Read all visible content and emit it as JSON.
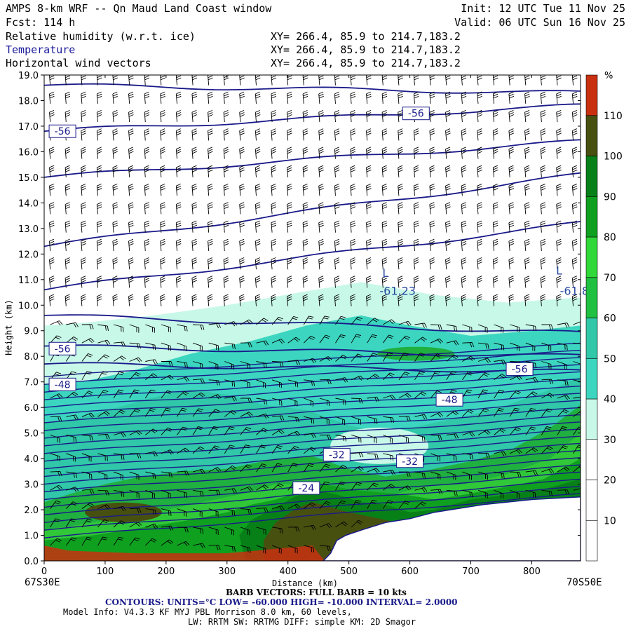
{
  "header": {
    "title": "AMPS 8-km WRF -- Qn Maud Land Coast window",
    "forecast": "Fcst:  114 h",
    "init": "Init: 12 UTC Tue 11 Nov 25",
    "valid": "Valid: 06 UTC Sun 16 Nov 25"
  },
  "fields": [
    {
      "name": "Relative humidity (w.r.t. ice)",
      "xy": "XY= 266.4, 85.9 to 214.7,183.2"
    },
    {
      "name": "Temperature",
      "xy": "XY= 266.4, 85.9 to 214.7,183.2"
    },
    {
      "name": "Horizontal wind vectors",
      "xy": "XY= 266.4, 85.9 to 214.7,183.2"
    }
  ],
  "colors": {
    "contour": "#1a1a8a",
    "bands": [
      "#ffffff",
      "#ffffff",
      "#ffffff",
      "#c8f8e8",
      "#3cd6c0",
      "#30c8a8",
      "#20b040",
      "#30c838",
      "#10a020",
      "#088018",
      "#485010",
      "#c83010"
    ]
  },
  "chart_data": {
    "type": "heatmap",
    "xlabel": "Distance (km)",
    "ylabel": "Height (km)",
    "xlim": [
      0,
      880
    ],
    "ylim": [
      0,
      19
    ],
    "x_ticks": [
      0,
      100,
      200,
      300,
      400,
      500,
      600,
      700,
      800
    ],
    "y_ticks": [
      "0.0",
      "1.0",
      "2.0",
      "3.0",
      "4.0",
      "5.0",
      "6.0",
      "7.0",
      "8.0",
      "9.0",
      "10.0",
      "11.0",
      "12.0",
      "13.0",
      "14.0",
      "15.0",
      "16.0",
      "17.0",
      "18.0",
      "19.0"
    ],
    "x_left_label": "67S30E",
    "x_right_label": "70S50E",
    "colorbar": {
      "unit": "%",
      "ticks": [
        "10",
        "20",
        "30",
        "40",
        "50",
        "60",
        "70",
        "80",
        "90",
        "100",
        "110"
      ]
    },
    "contour_labels": [
      {
        "text": "-56",
        "x": 30,
        "y": 16.8
      },
      {
        "text": "-56",
        "x": 610,
        "y": 17.5
      },
      {
        "text": "-56",
        "x": 30,
        "y": 8.3
      },
      {
        "text": "-56",
        "x": 780,
        "y": 7.5
      },
      {
        "text": "-48",
        "x": 30,
        "y": 6.9
      },
      {
        "text": "-48",
        "x": 665,
        "y": 6.3
      },
      {
        "text": "-32",
        "x": 480,
        "y": 4.15
      },
      {
        "text": "-32",
        "x": 600,
        "y": 3.9
      },
      {
        "text": "-24",
        "x": 430,
        "y": 2.85
      }
    ],
    "low_labels": [
      {
        "text": "L",
        "x": 560,
        "y": 11.1
      },
      {
        "text": "-61.23",
        "x": 580,
        "y": 10.4
      },
      {
        "text": "L",
        "x": 845,
        "y": 11.2
      },
      {
        "text": "-61.8",
        "x": 870,
        "y": 10.4
      }
    ]
  },
  "footer": {
    "barb": "BARB VECTORS:  FULL BARB = 10 kts",
    "contours": "CONTOURS:  UNITS=°C  LOW= -60.000     HIGH= -10.000     INTERVAL=   2.0000",
    "model_info": "Model Info: V4.3.3   KF      MYJ PBL  Morrison          8.0 km,  60 levels,",
    "physics": "LW: RRTM SW: RRTMG   DIFF: simple KM: 2D Smagor"
  }
}
